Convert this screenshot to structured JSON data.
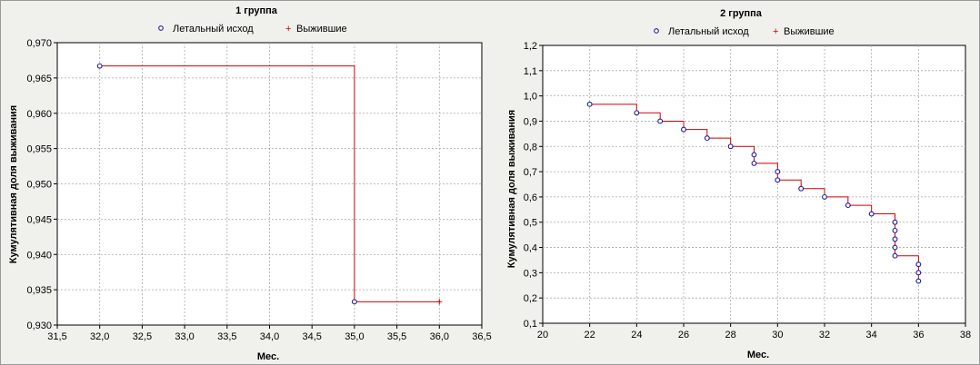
{
  "legend": {
    "event_label": "Летальный исход",
    "censored_label": "Выжившие"
  },
  "colors": {
    "step": "#d00000",
    "event_marker": "#1a1aa0",
    "censored_marker": "#d00000"
  },
  "chart_data": [
    {
      "type": "line",
      "subtype": "kaplan-meier",
      "title": "1 группа",
      "xlabel": "Мес.",
      "ylabel": "Кумулятивная доля выживания",
      "xlim": [
        31.5,
        36.5
      ],
      "ylim": [
        0.93,
        0.97
      ],
      "xticks": [
        "31,5",
        "32,0",
        "32,5",
        "33,0",
        "33,5",
        "34,0",
        "34,5",
        "35,0",
        "35,5",
        "36,0",
        "36,5"
      ],
      "yticks": [
        "0,930",
        "0,935",
        "0,940",
        "0,945",
        "0,950",
        "0,955",
        "0,960",
        "0,965",
        "0,970"
      ],
      "grid": true,
      "legend_position": "top",
      "step": [
        [
          32.0,
          0.9667
        ],
        [
          35.0,
          0.9667
        ],
        [
          35.0,
          0.9333
        ],
        [
          36.0,
          0.9333
        ]
      ],
      "events": [
        [
          32.0,
          0.9667
        ],
        [
          35.0,
          0.9333
        ]
      ],
      "censored": [
        [
          36.0,
          0.9333
        ]
      ]
    },
    {
      "type": "line",
      "subtype": "kaplan-meier",
      "title": "2 группа",
      "xlabel": "Мес.",
      "ylabel": "Кумулятивная доля выживания",
      "xlim": [
        20,
        38
      ],
      "ylim": [
        0.1,
        1.2
      ],
      "xticks": [
        "20",
        "22",
        "24",
        "26",
        "28",
        "30",
        "32",
        "34",
        "36",
        "38"
      ],
      "yticks": [
        "0,1",
        "0,2",
        "0,3",
        "0,4",
        "0,5",
        "0,6",
        "0,7",
        "0,8",
        "0,9",
        "1,0",
        "1,1",
        "1,2"
      ],
      "grid": true,
      "legend_position": "top",
      "step": [
        [
          22,
          0.967
        ],
        [
          24,
          0.967
        ],
        [
          24,
          0.933
        ],
        [
          25,
          0.933
        ],
        [
          25,
          0.9
        ],
        [
          26,
          0.9
        ],
        [
          26,
          0.867
        ],
        [
          27,
          0.867
        ],
        [
          27,
          0.833
        ],
        [
          28,
          0.833
        ],
        [
          28,
          0.8
        ],
        [
          29,
          0.8
        ],
        [
          29,
          0.733
        ],
        [
          30,
          0.733
        ],
        [
          30,
          0.667
        ],
        [
          31,
          0.667
        ],
        [
          31,
          0.633
        ],
        [
          32,
          0.633
        ],
        [
          32,
          0.6
        ],
        [
          33,
          0.6
        ],
        [
          33,
          0.567
        ],
        [
          34,
          0.567
        ],
        [
          34,
          0.533
        ],
        [
          35,
          0.533
        ],
        [
          35,
          0.367
        ],
        [
          36,
          0.367
        ],
        [
          36,
          0.267
        ]
      ],
      "events": [
        [
          22,
          0.967
        ],
        [
          24,
          0.933
        ],
        [
          25,
          0.9
        ],
        [
          26,
          0.867
        ],
        [
          27,
          0.833
        ],
        [
          28,
          0.8
        ],
        [
          29,
          0.767
        ],
        [
          29,
          0.733
        ],
        [
          30,
          0.7
        ],
        [
          30,
          0.667
        ],
        [
          31,
          0.633
        ],
        [
          32,
          0.6
        ],
        [
          33,
          0.567
        ],
        [
          34,
          0.533
        ],
        [
          35,
          0.5
        ],
        [
          35,
          0.467
        ],
        [
          35,
          0.433
        ],
        [
          35,
          0.4
        ],
        [
          35,
          0.367
        ],
        [
          36,
          0.333
        ],
        [
          36,
          0.3
        ],
        [
          36,
          0.267
        ]
      ],
      "censored": []
    }
  ]
}
